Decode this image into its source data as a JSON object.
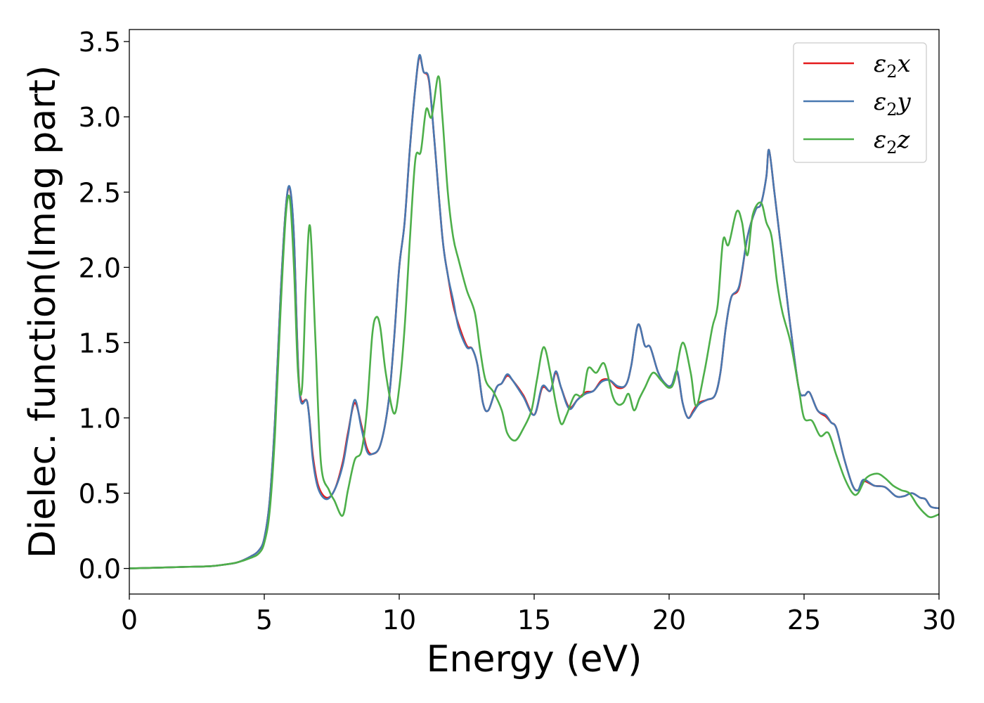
{
  "chart_data": {
    "type": "line",
    "title": "",
    "xlabel": "Energy (eV)",
    "ylabel": "Dielec. function(Imag part)",
    "xlim": [
      0,
      30
    ],
    "ylim": [
      -0.17,
      3.58
    ],
    "xticks": [
      0,
      5,
      10,
      15,
      20,
      25,
      30
    ],
    "xtick_labels": [
      "0",
      "5",
      "10",
      "15",
      "20",
      "25",
      "30"
    ],
    "yticks": [
      0.0,
      0.5,
      1.0,
      1.5,
      2.0,
      2.5,
      3.0,
      3.5
    ],
    "ytick_labels": [
      "0.0",
      "0.5",
      "1.0",
      "1.5",
      "2.0",
      "2.5",
      "3.0",
      "3.5"
    ],
    "grid": false,
    "legend_position": "top-right",
    "series": [
      {
        "name": "ε2x",
        "legend_base": "ε",
        "legend_sub": "2",
        "legend_suffix": "x",
        "color": "#e41a1c",
        "x": [
          0,
          1,
          2,
          3,
          3.5,
          4,
          4.5,
          4.8,
          5.0,
          5.2,
          5.4,
          5.6,
          5.8,
          5.95,
          6.1,
          6.3,
          6.6,
          6.8,
          7.0,
          7.3,
          7.6,
          7.9,
          8.1,
          8.35,
          8.6,
          8.8,
          9.0,
          9.3,
          9.6,
          9.8,
          10.0,
          10.2,
          10.4,
          10.6,
          10.75,
          10.9,
          11.1,
          11.3,
          11.6,
          11.8,
          12.0,
          12.2,
          12.5,
          12.7,
          12.9,
          13.1,
          13.3,
          13.6,
          13.8,
          14.0,
          14.2,
          14.6,
          15.0,
          15.3,
          15.6,
          15.8,
          16.0,
          16.3,
          16.6,
          16.9,
          17.2,
          17.5,
          17.8,
          18.1,
          18.4,
          18.6,
          18.85,
          19.1,
          19.3,
          19.6,
          19.9,
          20.1,
          20.3,
          20.5,
          20.7,
          20.9,
          21.1,
          21.4,
          21.7,
          21.9,
          22.1,
          22.3,
          22.6,
          22.9,
          23.2,
          23.4,
          23.6,
          23.7,
          23.9,
          24.1,
          24.3,
          24.5,
          24.8,
          25.0,
          25.2,
          25.5,
          25.8,
          26.0,
          26.2,
          26.5,
          26.8,
          27.0,
          27.2,
          27.6,
          28.0,
          28.4,
          28.7,
          29.0,
          29.3,
          29.5,
          29.7,
          30.0
        ],
        "y": [
          0.0,
          0.005,
          0.01,
          0.015,
          0.025,
          0.04,
          0.08,
          0.12,
          0.2,
          0.45,
          1.0,
          1.8,
          2.4,
          2.52,
          2.2,
          1.2,
          1.1,
          0.75,
          0.55,
          0.47,
          0.52,
          0.7,
          0.9,
          1.1,
          0.95,
          0.8,
          0.76,
          0.82,
          1.1,
          1.5,
          2.0,
          2.3,
          2.8,
          3.2,
          3.4,
          3.3,
          3.24,
          2.85,
          2.2,
          1.95,
          1.75,
          1.62,
          1.48,
          1.46,
          1.35,
          1.1,
          1.05,
          1.2,
          1.23,
          1.28,
          1.25,
          1.15,
          1.02,
          1.2,
          1.18,
          1.3,
          1.2,
          1.07,
          1.12,
          1.17,
          1.18,
          1.25,
          1.25,
          1.2,
          1.22,
          1.35,
          1.62,
          1.48,
          1.47,
          1.3,
          1.22,
          1.22,
          1.3,
          1.1,
          1.0,
          1.05,
          1.1,
          1.12,
          1.15,
          1.3,
          1.6,
          1.8,
          1.87,
          2.2,
          2.38,
          2.42,
          2.6,
          2.78,
          2.5,
          2.2,
          1.9,
          1.6,
          1.2,
          1.15,
          1.17,
          1.05,
          1.01,
          0.97,
          0.93,
          0.72,
          0.55,
          0.52,
          0.58,
          0.55,
          0.54,
          0.48,
          0.48,
          0.5,
          0.47,
          0.46,
          0.41,
          0.4
        ]
      },
      {
        "name": "ε2y",
        "legend_base": "ε",
        "legend_sub": "2",
        "legend_suffix": "y",
        "color": "#4878b0",
        "x": [
          0,
          1,
          2,
          3,
          3.5,
          4,
          4.5,
          4.8,
          5.0,
          5.2,
          5.4,
          5.6,
          5.8,
          5.95,
          6.1,
          6.3,
          6.6,
          6.8,
          7.0,
          7.3,
          7.6,
          7.9,
          8.1,
          8.35,
          8.6,
          8.8,
          9.0,
          9.3,
          9.6,
          9.8,
          10.0,
          10.2,
          10.4,
          10.6,
          10.75,
          10.9,
          11.1,
          11.3,
          11.6,
          11.8,
          12.0,
          12.2,
          12.5,
          12.7,
          12.9,
          13.1,
          13.3,
          13.6,
          13.8,
          14.0,
          14.2,
          14.6,
          15.0,
          15.3,
          15.6,
          15.8,
          16.0,
          16.3,
          16.6,
          16.9,
          17.2,
          17.5,
          17.8,
          18.1,
          18.4,
          18.6,
          18.85,
          19.1,
          19.3,
          19.6,
          19.9,
          20.1,
          20.3,
          20.5,
          20.7,
          20.9,
          21.1,
          21.4,
          21.7,
          21.9,
          22.1,
          22.3,
          22.6,
          22.9,
          23.2,
          23.4,
          23.6,
          23.7,
          23.9,
          24.1,
          24.3,
          24.5,
          24.8,
          25.0,
          25.2,
          25.5,
          25.8,
          26.0,
          26.2,
          26.5,
          26.8,
          27.0,
          27.2,
          27.6,
          28.0,
          28.4,
          28.7,
          29.0,
          29.3,
          29.5,
          29.7,
          30.0
        ],
        "y": [
          0.0,
          0.005,
          0.01,
          0.015,
          0.025,
          0.04,
          0.08,
          0.12,
          0.2,
          0.45,
          1.0,
          1.8,
          2.4,
          2.53,
          2.2,
          1.18,
          1.1,
          0.72,
          0.53,
          0.46,
          0.52,
          0.68,
          0.88,
          1.12,
          0.93,
          0.78,
          0.76,
          0.82,
          1.1,
          1.5,
          2.0,
          2.3,
          2.8,
          3.2,
          3.41,
          3.3,
          3.25,
          2.85,
          2.2,
          1.95,
          1.78,
          1.6,
          1.47,
          1.46,
          1.35,
          1.1,
          1.05,
          1.2,
          1.23,
          1.29,
          1.25,
          1.14,
          1.02,
          1.21,
          1.18,
          1.31,
          1.2,
          1.06,
          1.12,
          1.16,
          1.18,
          1.24,
          1.25,
          1.21,
          1.22,
          1.35,
          1.62,
          1.48,
          1.47,
          1.3,
          1.22,
          1.22,
          1.31,
          1.1,
          1.0,
          1.04,
          1.09,
          1.12,
          1.15,
          1.3,
          1.6,
          1.8,
          1.88,
          2.2,
          2.38,
          2.42,
          2.6,
          2.78,
          2.5,
          2.2,
          1.9,
          1.6,
          1.2,
          1.15,
          1.17,
          1.05,
          1.02,
          0.97,
          0.93,
          0.72,
          0.55,
          0.52,
          0.59,
          0.55,
          0.54,
          0.48,
          0.48,
          0.5,
          0.47,
          0.46,
          0.41,
          0.4
        ]
      },
      {
        "name": "ε2z",
        "legend_base": "ε",
        "legend_sub": "2",
        "legend_suffix": "z",
        "color": "#4daf4a",
        "x": [
          0,
          1,
          2,
          3,
          3.5,
          4,
          4.5,
          4.8,
          5.0,
          5.2,
          5.4,
          5.6,
          5.8,
          5.95,
          6.1,
          6.25,
          6.4,
          6.55,
          6.7,
          6.9,
          7.1,
          7.4,
          7.6,
          7.9,
          8.1,
          8.35,
          8.6,
          8.8,
          9.0,
          9.15,
          9.3,
          9.5,
          9.8,
          10.0,
          10.2,
          10.4,
          10.6,
          10.8,
          11.0,
          11.2,
          11.45,
          11.6,
          11.8,
          12.0,
          12.2,
          12.5,
          12.8,
          13.0,
          13.2,
          13.5,
          13.8,
          14.0,
          14.3,
          14.6,
          14.9,
          15.1,
          15.35,
          15.6,
          15.8,
          16.0,
          16.2,
          16.5,
          16.8,
          17.0,
          17.3,
          17.6,
          17.9,
          18.1,
          18.3,
          18.5,
          18.7,
          18.9,
          19.1,
          19.4,
          19.7,
          20.0,
          20.2,
          20.5,
          20.8,
          21.0,
          21.3,
          21.6,
          21.8,
          22.0,
          22.2,
          22.5,
          22.7,
          22.9,
          23.1,
          23.4,
          23.6,
          23.8,
          24.0,
          24.2,
          24.5,
          24.8,
          25.0,
          25.3,
          25.6,
          25.9,
          26.2,
          26.5,
          26.8,
          27.0,
          27.3,
          27.7,
          28.0,
          28.3,
          28.6,
          28.9,
          29.2,
          29.5,
          29.7,
          30.0
        ],
        "y": [
          0.0,
          0.005,
          0.01,
          0.015,
          0.025,
          0.04,
          0.07,
          0.1,
          0.17,
          0.38,
          0.9,
          1.7,
          2.35,
          2.45,
          2.0,
          1.3,
          1.2,
          1.9,
          2.27,
          1.5,
          0.7,
          0.52,
          0.45,
          0.35,
          0.52,
          0.72,
          0.78,
          1.05,
          1.55,
          1.67,
          1.6,
          1.3,
          1.03,
          1.2,
          1.6,
          2.2,
          2.72,
          2.77,
          3.05,
          3.0,
          3.27,
          3.0,
          2.5,
          2.2,
          2.05,
          1.85,
          1.7,
          1.45,
          1.25,
          1.17,
          1.05,
          0.9,
          0.85,
          0.93,
          1.05,
          1.25,
          1.47,
          1.3,
          1.1,
          0.96,
          1.02,
          1.15,
          1.15,
          1.33,
          1.3,
          1.36,
          1.15,
          1.09,
          1.1,
          1.16,
          1.05,
          1.13,
          1.2,
          1.3,
          1.25,
          1.2,
          1.25,
          1.5,
          1.3,
          1.08,
          1.3,
          1.6,
          1.75,
          2.18,
          2.15,
          2.37,
          2.3,
          2.08,
          2.35,
          2.43,
          2.3,
          2.2,
          1.9,
          1.7,
          1.5,
          1.2,
          1.0,
          0.98,
          0.88,
          0.9,
          0.75,
          0.6,
          0.5,
          0.5,
          0.6,
          0.63,
          0.6,
          0.55,
          0.52,
          0.5,
          0.42,
          0.36,
          0.34,
          0.36
        ]
      }
    ]
  }
}
